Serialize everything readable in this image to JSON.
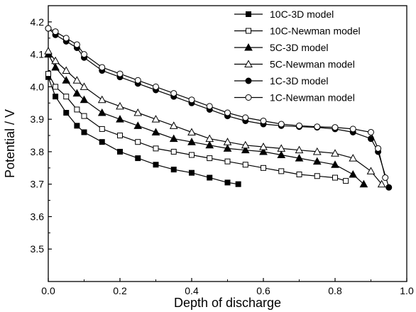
{
  "chart_data": {
    "type": "line",
    "title": "",
    "xlabel": "Depth of discharge",
    "ylabel": "Potential / V",
    "xlim": [
      0.0,
      1.0
    ],
    "ylim": [
      3.4,
      4.25
    ],
    "xticks": [
      0.0,
      0.2,
      0.4,
      0.6,
      0.8,
      1.0
    ],
    "xtick_labels": [
      "0.0",
      "0.2",
      "0.4",
      "0.6",
      "0.8",
      "1.0"
    ],
    "yticks": [
      3.5,
      3.6,
      3.7,
      3.8,
      3.9,
      4.0,
      4.1,
      4.2
    ],
    "ytick_labels": [
      "3.5",
      "3.6",
      "3.7",
      "3.8",
      "3.9",
      "4.0",
      "4.1",
      "4.2"
    ],
    "legend_position": "top-right",
    "series": [
      {
        "name": "10C-3D model",
        "marker": "square-filled",
        "points": [
          [
            0.0,
            4.03
          ],
          [
            0.02,
            3.97
          ],
          [
            0.05,
            3.92
          ],
          [
            0.08,
            3.88
          ],
          [
            0.1,
            3.86
          ],
          [
            0.15,
            3.83
          ],
          [
            0.2,
            3.8
          ],
          [
            0.25,
            3.78
          ],
          [
            0.3,
            3.76
          ],
          [
            0.35,
            3.745
          ],
          [
            0.4,
            3.735
          ],
          [
            0.45,
            3.72
          ],
          [
            0.5,
            3.705
          ],
          [
            0.53,
            3.7
          ]
        ]
      },
      {
        "name": "10C-Newman model",
        "marker": "square-open",
        "points": [
          [
            0.0,
            4.04
          ],
          [
            0.02,
            4.0
          ],
          [
            0.05,
            3.97
          ],
          [
            0.08,
            3.93
          ],
          [
            0.1,
            3.91
          ],
          [
            0.15,
            3.87
          ],
          [
            0.2,
            3.85
          ],
          [
            0.25,
            3.83
          ],
          [
            0.3,
            3.81
          ],
          [
            0.35,
            3.8
          ],
          [
            0.4,
            3.79
          ],
          [
            0.45,
            3.78
          ],
          [
            0.5,
            3.77
          ],
          [
            0.55,
            3.76
          ],
          [
            0.6,
            3.75
          ],
          [
            0.65,
            3.74
          ],
          [
            0.7,
            3.73
          ],
          [
            0.75,
            3.725
          ],
          [
            0.8,
            3.72
          ],
          [
            0.83,
            3.71
          ]
        ]
      },
      {
        "name": "5C-3D model",
        "marker": "triangle-filled",
        "points": [
          [
            0.0,
            4.1
          ],
          [
            0.02,
            4.06
          ],
          [
            0.05,
            4.02
          ],
          [
            0.08,
            3.98
          ],
          [
            0.1,
            3.96
          ],
          [
            0.15,
            3.92
          ],
          [
            0.2,
            3.9
          ],
          [
            0.25,
            3.88
          ],
          [
            0.3,
            3.86
          ],
          [
            0.35,
            3.84
          ],
          [
            0.4,
            3.83
          ],
          [
            0.45,
            3.82
          ],
          [
            0.5,
            3.81
          ],
          [
            0.55,
            3.805
          ],
          [
            0.6,
            3.8
          ],
          [
            0.65,
            3.79
          ],
          [
            0.7,
            3.78
          ],
          [
            0.75,
            3.77
          ],
          [
            0.8,
            3.76
          ],
          [
            0.85,
            3.73
          ],
          [
            0.88,
            3.7
          ]
        ]
      },
      {
        "name": "5C-Newman model",
        "marker": "triangle-open",
        "points": [
          [
            0.0,
            4.11
          ],
          [
            0.02,
            4.08
          ],
          [
            0.05,
            4.05
          ],
          [
            0.08,
            4.02
          ],
          [
            0.1,
            4.0
          ],
          [
            0.15,
            3.96
          ],
          [
            0.2,
            3.94
          ],
          [
            0.25,
            3.92
          ],
          [
            0.3,
            3.9
          ],
          [
            0.35,
            3.88
          ],
          [
            0.4,
            3.86
          ],
          [
            0.45,
            3.84
          ],
          [
            0.5,
            3.83
          ],
          [
            0.55,
            3.82
          ],
          [
            0.6,
            3.815
          ],
          [
            0.65,
            3.81
          ],
          [
            0.7,
            3.805
          ],
          [
            0.75,
            3.8
          ],
          [
            0.8,
            3.795
          ],
          [
            0.85,
            3.78
          ],
          [
            0.9,
            3.74
          ],
          [
            0.93,
            3.7
          ]
        ]
      },
      {
        "name": "1C-3D model",
        "marker": "circle-filled",
        "points": [
          [
            0.0,
            4.18
          ],
          [
            0.02,
            4.16
          ],
          [
            0.05,
            4.14
          ],
          [
            0.08,
            4.12
          ],
          [
            0.1,
            4.09
          ],
          [
            0.15,
            4.05
          ],
          [
            0.2,
            4.03
          ],
          [
            0.25,
            4.01
          ],
          [
            0.3,
            3.99
          ],
          [
            0.35,
            3.97
          ],
          [
            0.4,
            3.95
          ],
          [
            0.45,
            3.93
          ],
          [
            0.5,
            3.91
          ],
          [
            0.55,
            3.895
          ],
          [
            0.6,
            3.885
          ],
          [
            0.65,
            3.88
          ],
          [
            0.7,
            3.877
          ],
          [
            0.75,
            3.875
          ],
          [
            0.8,
            3.87
          ],
          [
            0.85,
            3.86
          ],
          [
            0.9,
            3.84
          ],
          [
            0.92,
            3.8
          ],
          [
            0.95,
            3.69
          ]
        ]
      },
      {
        "name": "1C-Newman model",
        "marker": "circle-open",
        "points": [
          [
            0.0,
            4.18
          ],
          [
            0.02,
            4.17
          ],
          [
            0.05,
            4.15
          ],
          [
            0.08,
            4.13
          ],
          [
            0.1,
            4.1
          ],
          [
            0.15,
            4.06
          ],
          [
            0.2,
            4.04
          ],
          [
            0.25,
            4.02
          ],
          [
            0.3,
            4.0
          ],
          [
            0.35,
            3.98
          ],
          [
            0.4,
            3.96
          ],
          [
            0.45,
            3.94
          ],
          [
            0.5,
            3.92
          ],
          [
            0.55,
            3.905
          ],
          [
            0.6,
            3.895
          ],
          [
            0.65,
            3.885
          ],
          [
            0.7,
            3.88
          ],
          [
            0.75,
            3.877
          ],
          [
            0.8,
            3.875
          ],
          [
            0.85,
            3.87
          ],
          [
            0.9,
            3.86
          ],
          [
            0.92,
            3.81
          ],
          [
            0.94,
            3.72
          ]
        ]
      }
    ]
  }
}
